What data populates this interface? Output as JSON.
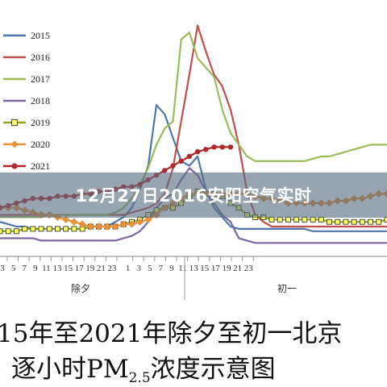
{
  "banner": {
    "title": "12月27日2016安阳空气实时"
  },
  "caption": {
    "line1": "15年至2021年除夕至初一北京",
    "line2_pre": "逐小时PM",
    "line2_sub": "2.5",
    "line2_post": "浓度示意图"
  },
  "chart_data": {
    "type": "line",
    "x_tick_labels": [
      "3",
      "5",
      "7",
      "9",
      "11",
      "13",
      "15",
      "17",
      "19",
      "21",
      "23",
      "1",
      "3",
      "5",
      "7",
      "9",
      "11",
      "13",
      "15",
      "17",
      "19",
      "21",
      "23"
    ],
    "group_labels": [
      "除夕",
      "初一"
    ],
    "legend_position": "top-left",
    "ylim": [
      0,
      100
    ],
    "grid": false,
    "series": [
      {
        "name": "2015",
        "color": "#4f76ad",
        "marker": "none",
        "values": [
          12,
          11,
          10,
          10,
          9,
          9,
          9,
          9,
          9,
          9,
          9,
          10,
          10,
          10,
          12,
          14,
          18,
          26,
          36,
          62,
          58,
          48,
          38,
          36,
          40,
          26,
          18,
          14,
          10,
          9,
          9,
          9,
          9,
          9,
          9,
          9,
          9,
          9,
          8,
          8,
          8,
          8,
          8,
          8,
          8,
          8,
          8,
          8
        ]
      },
      {
        "name": "2016",
        "color": "#bf504d",
        "marker": "none",
        "values": [
          15,
          15,
          15,
          15,
          15,
          15,
          15,
          15,
          15,
          15,
          15,
          15,
          15,
          15,
          15,
          15,
          16,
          17,
          18,
          20,
          24,
          35,
          55,
          75,
          96,
          85,
          75,
          70,
          60,
          45,
          25,
          15,
          12,
          10,
          10,
          10,
          10,
          10,
          10,
          10,
          10,
          10,
          10,
          10,
          10,
          10,
          10,
          10
        ]
      },
      {
        "name": "2017",
        "color": "#9bbb59",
        "marker": "none",
        "values": [
          14,
          14,
          14,
          14,
          14,
          14,
          15,
          15,
          15,
          15,
          15,
          15,
          15,
          15,
          16,
          18,
          22,
          28,
          35,
          45,
          52,
          55,
          90,
          93,
          82,
          78,
          74,
          60,
          50,
          45,
          40,
          38,
          38,
          38,
          38,
          38,
          38,
          38,
          39,
          40,
          40,
          41,
          42,
          43,
          44,
          45,
          45,
          45
        ]
      },
      {
        "name": "2018",
        "color": "#7b64a0",
        "marker": "none",
        "values": [
          5,
          5,
          5,
          5,
          5,
          4,
          4,
          4,
          4,
          4,
          4,
          4,
          4,
          4,
          4,
          5,
          6,
          8,
          12,
          18,
          22,
          24,
          30,
          35,
          32,
          25,
          20,
          15,
          12,
          5,
          4,
          3,
          3,
          3,
          3,
          3,
          3,
          3,
          3,
          3,
          3,
          3,
          3,
          3,
          3,
          3,
          3,
          3
        ]
      },
      {
        "name": "2019",
        "color": "#8aa72a",
        "marker": "square",
        "values": [
          8,
          8,
          8,
          9,
          9,
          9,
          9,
          9,
          9,
          9,
          9,
          10,
          10,
          10,
          10,
          11,
          12,
          13,
          15,
          17,
          18,
          18,
          20,
          22,
          25,
          24,
          24,
          23,
          20,
          18,
          15,
          14,
          14,
          13,
          13,
          13,
          13,
          13,
          13,
          13,
          12,
          12,
          12,
          12,
          12,
          12,
          12,
          13
        ]
      },
      {
        "name": "2020",
        "color": "#e8903a",
        "marker": "diamond",
        "values": [
          18,
          18,
          18,
          17,
          16,
          15,
          15,
          14,
          13,
          12,
          11,
          10,
          10,
          10,
          10,
          11,
          11,
          12,
          13,
          15,
          18,
          20,
          22,
          24,
          24,
          24,
          24,
          24,
          24,
          24,
          24,
          23,
          22,
          22,
          21,
          20,
          20,
          20,
          20,
          20,
          20,
          21,
          21,
          22,
          22,
          23,
          24,
          24
        ]
      },
      {
        "name": "2021",
        "color": "#b0282c",
        "marker": "circle",
        "values": [
          18,
          19,
          20,
          21,
          22,
          22,
          22,
          23,
          23,
          23,
          24,
          24,
          25,
          25,
          26,
          27,
          27,
          28,
          30,
          32,
          34,
          36,
          38,
          40,
          42,
          43,
          44,
          44,
          44
        ]
      }
    ]
  }
}
